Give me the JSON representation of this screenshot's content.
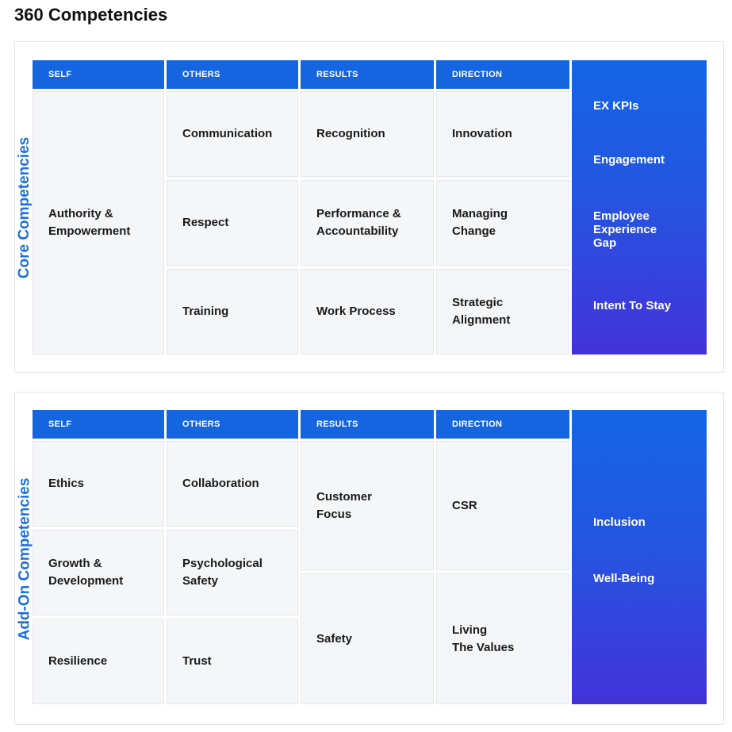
{
  "title": "360 Competencies",
  "colors": {
    "header_blue": "#1565e0",
    "side_label_blue": "#1b6fe0",
    "cell_bg": "#f5f6f8",
    "kpi_gradient_top": "#1464e6",
    "kpi_gradient_bottom": "#4332d9"
  },
  "core": {
    "label": "Core Competencies",
    "headers": [
      "SELF",
      "OTHERS",
      "RESULTS",
      "DIRECTION"
    ],
    "self": [
      "Authority &\nEmpowerment"
    ],
    "others": [
      "Communication",
      "Respect",
      "Training"
    ],
    "results": [
      "Recognition",
      "Performance &\nAccountability",
      "Work Process"
    ],
    "direction": [
      "Innovation",
      "Managing\nChange",
      "Strategic\nAlignment"
    ],
    "kpis": [
      "EX KPIs",
      "Engagement",
      "Employee\nExperience\nGap",
      "Intent To Stay"
    ]
  },
  "addon": {
    "label": "Add-On Competencies",
    "headers": [
      "SELF",
      "OTHERS",
      "RESULTS",
      "DIRECTION"
    ],
    "self": [
      "Ethics",
      "Growth &\nDevelopment",
      "Resilience"
    ],
    "others": [
      "Collaboration",
      "Psychological\nSafety",
      "Trust"
    ],
    "results": [
      "Customer\nFocus",
      "Safety"
    ],
    "direction": [
      "CSR",
      "Living\nThe Values"
    ],
    "kpis": [
      "Inclusion",
      "Well-Being"
    ]
  }
}
